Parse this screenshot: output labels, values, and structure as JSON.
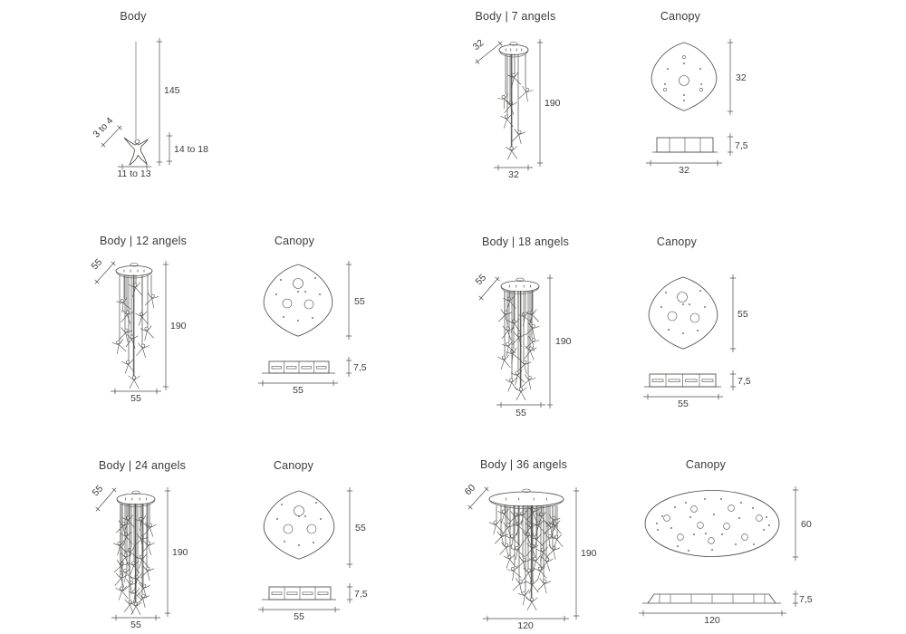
{
  "page": {
    "background": "#ffffff",
    "line_color": "#4e4d4a",
    "text_color": "#3b3b3a"
  },
  "panels": [
    {
      "id": "body-single",
      "title": "Body",
      "dims": {
        "drop_height": "145",
        "angel_height": "14 to 18",
        "angel_width": "11 to 13",
        "angel_depth": "3 to 4"
      }
    },
    {
      "id": "body-7-angels",
      "title": "Body | 7 angels",
      "dims": {
        "canopy_diameter": "32",
        "height": "190",
        "width": "32"
      }
    },
    {
      "id": "canopy-32",
      "title": "Canopy",
      "dims": {
        "plan_height": "32",
        "side_height": "7,5",
        "width": "32"
      }
    },
    {
      "id": "body-12-angels",
      "title": "Body | 12 angels",
      "dims": {
        "canopy_diameter": "55",
        "height": "190",
        "width": "55"
      }
    },
    {
      "id": "canopy-55-a",
      "title": "Canopy",
      "dims": {
        "plan_height": "55",
        "side_height": "7,5",
        "width": "55"
      }
    },
    {
      "id": "body-18-angels",
      "title": "Body | 18 angels",
      "dims": {
        "canopy_diameter": "55",
        "height": "190",
        "width": "55"
      }
    },
    {
      "id": "canopy-55-b",
      "title": "Canopy",
      "dims": {
        "plan_height": "55",
        "side_height": "7,5",
        "width": "55"
      }
    },
    {
      "id": "body-24-angels",
      "title": "Body | 24 angels",
      "dims": {
        "canopy_diameter": "55",
        "height": "190",
        "width": "55"
      }
    },
    {
      "id": "canopy-55-c",
      "title": "Canopy",
      "dims": {
        "plan_height": "55",
        "side_height": "7,5",
        "width": "55"
      }
    },
    {
      "id": "body-36-angels",
      "title": "Body | 36 angels",
      "dims": {
        "canopy_diameter": "60",
        "height": "190",
        "width": "120"
      }
    },
    {
      "id": "canopy-120",
      "title": "Canopy",
      "dims": {
        "plan_height": "60",
        "side_height": "7,5",
        "width": "120"
      }
    }
  ]
}
